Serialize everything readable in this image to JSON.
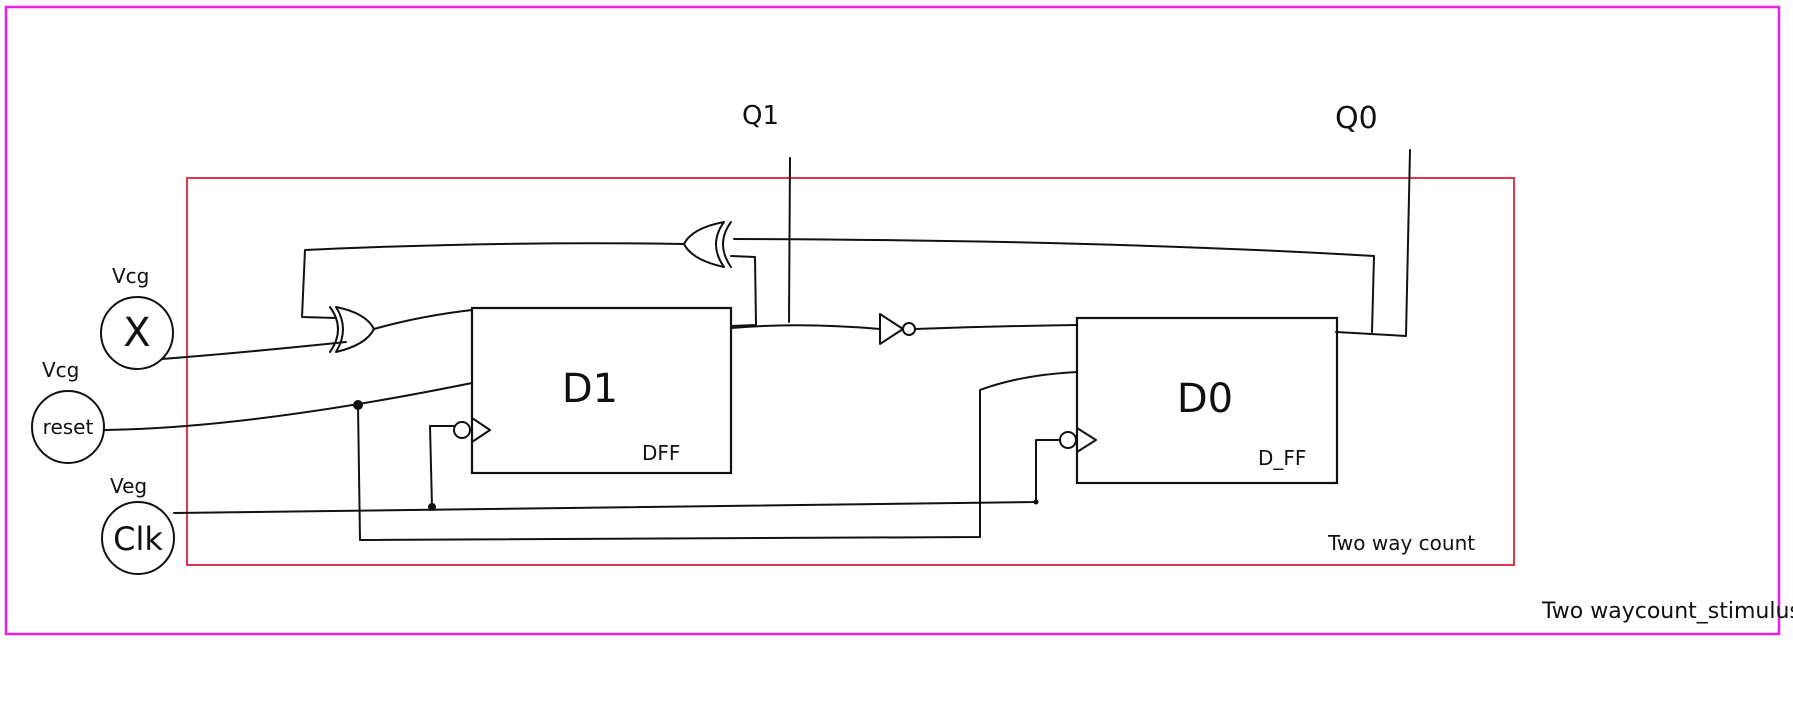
{
  "diagram": {
    "outer_frame_label": "Two waycount_stimulus",
    "inner_frame_label": "Two way count",
    "colors": {
      "outer_frame": "#e61ee6",
      "inner_frame": "#e0203a",
      "ink": "#111111"
    },
    "outputs": {
      "q1": "Q1",
      "q0": "Q0"
    },
    "sources": {
      "x": {
        "label": "X",
        "type_label": "Vcg"
      },
      "reset": {
        "label": "reset",
        "type_label": "Vcg"
      },
      "clk": {
        "label": "Clk",
        "type_label": "Veg"
      }
    },
    "flipflops": {
      "d1": {
        "label": "D1",
        "type_label": "DFF"
      },
      "d0": {
        "label": "D0",
        "type_label": "D_FF"
      }
    }
  }
}
